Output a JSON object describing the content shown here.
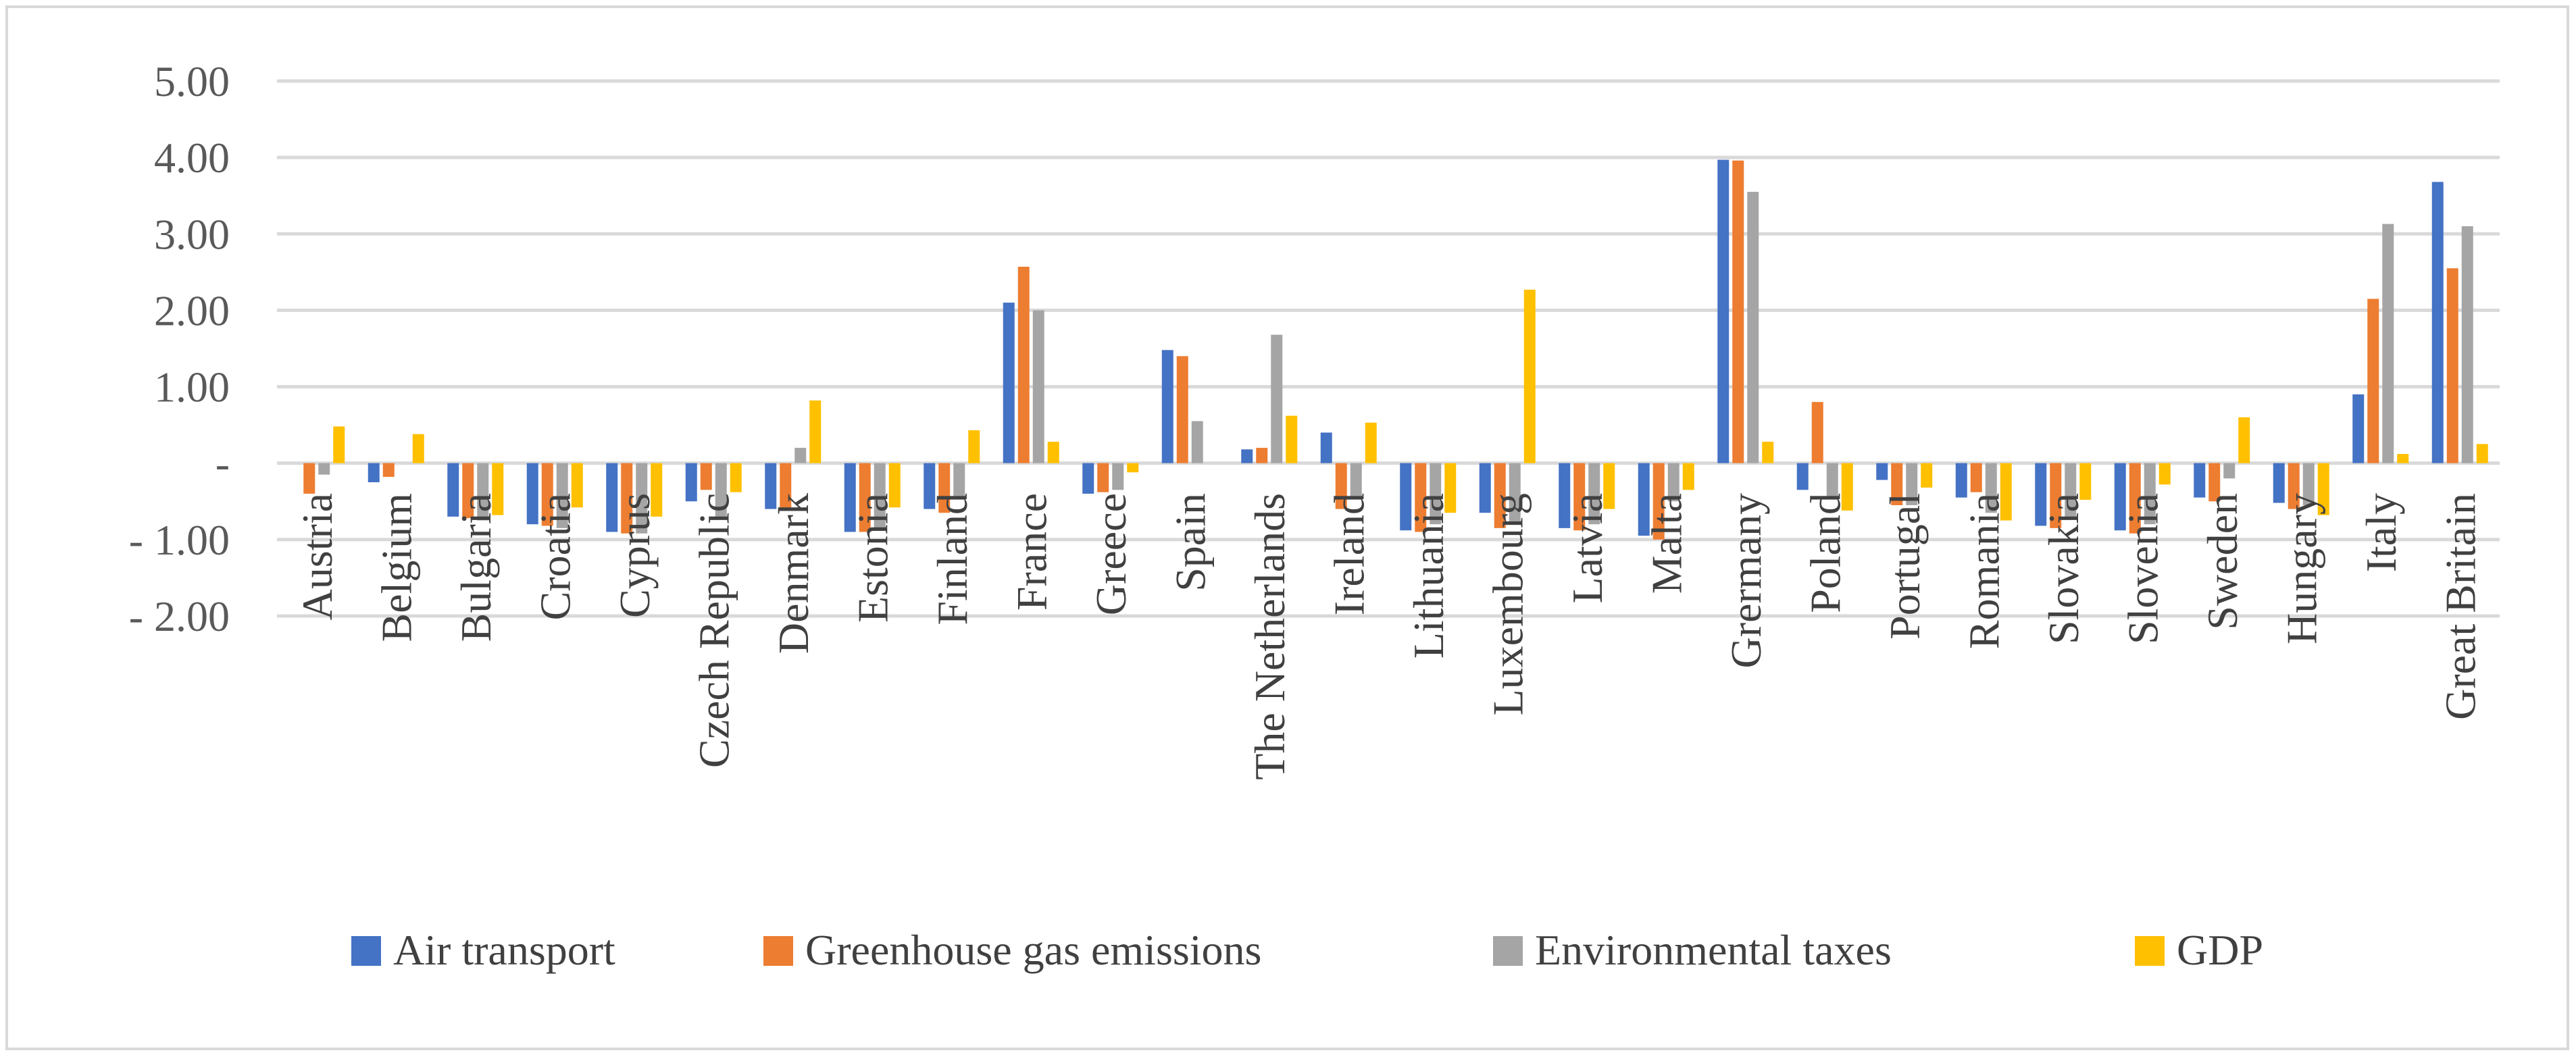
{
  "chart_data": {
    "type": "bar",
    "categories": [
      "Austria",
      "Belgium",
      "Bulgaria",
      "Croatia",
      "Cyprus",
      "Czech Republic",
      "Denmark",
      "Estonia",
      "Finland",
      "France",
      "Greece",
      "Spain",
      "The Netherlands",
      "Ireland",
      "Lithuania",
      "Luxembourg",
      "Latvia",
      "Malta",
      "Grermany",
      "Poland",
      "Portugal",
      "Romania",
      "Slovakia",
      "Slovenia",
      "Sweden",
      "Hungary",
      "Italy",
      "Great Britain"
    ],
    "series": [
      {
        "name": "Air transport",
        "color": "#4472c4",
        "values": [
          0.0,
          -0.25,
          -0.7,
          -0.8,
          -0.9,
          -0.5,
          -0.6,
          -0.9,
          -0.6,
          2.1,
          -0.4,
          1.48,
          0.18,
          0.4,
          -0.88,
          -0.65,
          -0.85,
          -0.95,
          3.97,
          -0.35,
          -0.22,
          -0.45,
          -0.82,
          -0.88,
          -0.45,
          -0.52,
          0.9,
          3.68
        ]
      },
      {
        "name": "Greenhouse gas emissions",
        "color": "#ed7d31",
        "values": [
          -0.4,
          -0.18,
          -0.72,
          -0.82,
          -0.92,
          -0.35,
          -0.62,
          -0.9,
          -0.65,
          2.57,
          -0.38,
          1.4,
          0.2,
          -0.6,
          -0.9,
          -0.85,
          -0.88,
          -1.0,
          3.96,
          0.8,
          -0.55,
          -0.38,
          -0.85,
          -0.92,
          -0.5,
          -0.6,
          2.15,
          2.55
        ]
      },
      {
        "name": "Environmental taxes",
        "color": "#a5a5a5",
        "values": [
          -0.15,
          0.0,
          -0.75,
          -0.85,
          -0.92,
          -0.7,
          0.2,
          -0.85,
          -0.45,
          2.0,
          -0.35,
          0.55,
          1.68,
          -0.45,
          -0.8,
          -0.78,
          -0.8,
          -0.5,
          3.55,
          -0.45,
          -0.55,
          -0.65,
          -0.7,
          -0.8,
          -0.2,
          -0.55,
          3.13,
          3.1
        ]
      },
      {
        "name": "GDP",
        "color": "#ffc000",
        "values": [
          0.48,
          0.38,
          -0.68,
          -0.58,
          -0.7,
          -0.38,
          0.82,
          -0.58,
          0.43,
          0.28,
          -0.12,
          0.0,
          0.62,
          0.53,
          -0.65,
          2.27,
          -0.6,
          -0.35,
          0.28,
          -0.62,
          -0.32,
          -0.75,
          -0.48,
          -0.28,
          0.6,
          -0.68,
          0.12,
          0.25
        ]
      }
    ],
    "y_ticks": [
      "5.00",
      "4.00",
      "3.00",
      "2.00",
      "1.00",
      "-",
      "- 1.00",
      "- 2.00"
    ],
    "ylim": [
      -2,
      5
    ],
    "grid": true,
    "legend_position": "bottom"
  }
}
